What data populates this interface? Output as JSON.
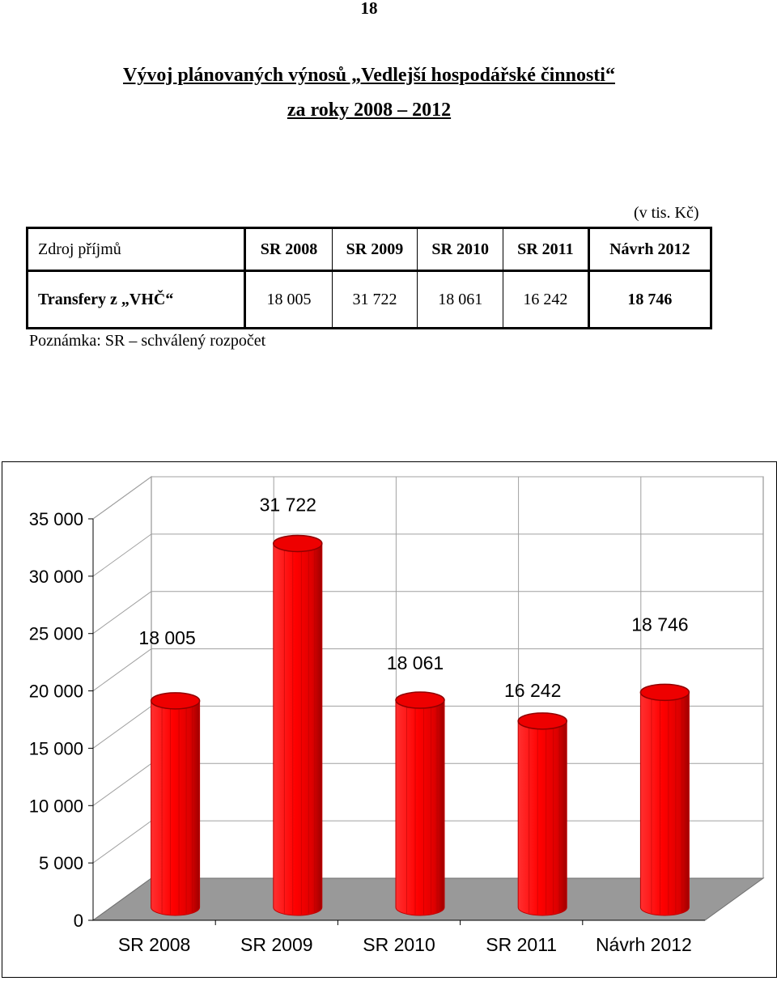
{
  "page_number": "18",
  "title_line1": "Vývoj plánovaných výnosů „Vedlejší hospodářské činnosti“",
  "title_line2": "za roky 2008 – 2012",
  "unit": "(v tis. Kč)",
  "table": {
    "headers": [
      "Zdroj příjmů",
      "SR 2008",
      "SR 2009",
      "SR 2010",
      "SR 2011",
      "Návrh 2012"
    ],
    "row": [
      "Transfery z „VHČ“",
      "18 005",
      "31 722",
      "18 061",
      "16 242",
      "18 746"
    ]
  },
  "note": "Poznámka: SR – schválený rozpočet",
  "colors": {
    "bar": "#ff0000",
    "bar_dark": "#b00000",
    "floor": "#999999"
  },
  "chart_data": {
    "type": "bar",
    "categories": [
      "SR 2008",
      "SR 2009",
      "SR 2010",
      "SR 2011",
      "Návrh 2012"
    ],
    "values": [
      18005,
      31722,
      18061,
      16242,
      18746
    ],
    "data_labels": [
      "18 005",
      "31 722",
      "18 061",
      "16 242",
      "18 746"
    ],
    "ylim": [
      0,
      35000
    ],
    "yticks": [
      0,
      5000,
      10000,
      15000,
      20000,
      25000,
      30000,
      35000
    ],
    "ytick_labels": [
      "0",
      "5 000",
      "10 000",
      "15 000",
      "20 000",
      "25 000",
      "30 000",
      "35 000"
    ],
    "grid": true,
    "legend": "none",
    "style": "3d-cylinder"
  }
}
